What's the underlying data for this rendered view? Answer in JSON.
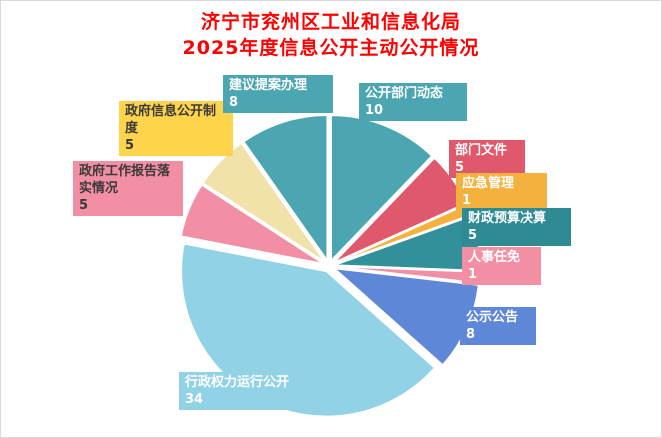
{
  "title": {
    "line1": "济宁市兖州区工业和信息化局",
    "line2": "2025年度信息公开主动公开情况",
    "color": "#FF0000"
  },
  "chart_data": {
    "type": "pie",
    "title": "济宁市兖州区工业和信息化局 2025年度信息公开主动公开情况",
    "legend_position": "none",
    "start_angle_deg": 0,
    "direction": "clockwise",
    "categories": [
      "公开部门动态",
      "部门文件",
      "应急管理",
      "财政预算决算",
      "人事任免",
      "公示公告",
      "行政权力运行公开",
      "政府工作报告落实情况",
      "政府信息公开制度",
      "建议提案办理"
    ],
    "values": [
      10,
      5,
      1,
      5,
      1,
      8,
      34,
      5,
      5,
      8
    ],
    "slices": [
      {
        "label": "公开部门动态",
        "value": 10,
        "color": "#4BA6B2",
        "label_bg": "#4BA6B2",
        "label_color": "#FFFFFF"
      },
      {
        "label": "部门文件",
        "value": 5,
        "color": "#E0586C",
        "label_bg": "#E0586C",
        "label_color": "#FFFFFF"
      },
      {
        "label": "应急管理",
        "value": 1,
        "color": "#F5B13D",
        "label_bg": "#F5B13D",
        "label_color": "#FFFFFF"
      },
      {
        "label": "财政预算决算",
        "value": 5,
        "color": "#31909A",
        "label_bg": "#2E8B94",
        "label_color": "#FFFFFF"
      },
      {
        "label": "人事任免",
        "value": 1,
        "color": "#F28FA5",
        "label_bg": "#F28FA5",
        "label_color": "#FFFFFF"
      },
      {
        "label": "公示公告",
        "value": 8,
        "color": "#5E87D8",
        "label_bg": "#5E87D8",
        "label_color": "#FFFFFF"
      },
      {
        "label": "行政权力运行公开",
        "value": 34,
        "color": "#92D2E7",
        "label_bg": "#92D2E7",
        "label_color": "#FFFFFF"
      },
      {
        "label": "政府工作报告落实情况",
        "value": 5,
        "color": "#F28FA5",
        "label_bg": "#F28FA5",
        "label_color": "#3A3A3A"
      },
      {
        "label": "政府信息公开制度",
        "value": 5,
        "color": "#F0E2A8",
        "label_bg": "#FFD44D",
        "label_color": "#3A3A3A"
      },
      {
        "label": "建议提案办理",
        "value": 8,
        "color": "#4BA6B2",
        "label_bg": "#4BA6B2",
        "label_color": "#FFFFFF"
      }
    ]
  }
}
